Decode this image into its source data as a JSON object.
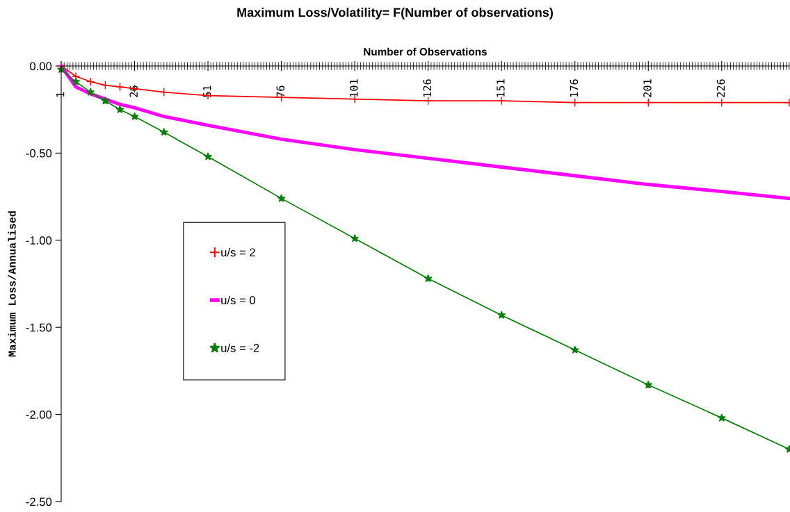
{
  "chart_data": {
    "type": "line",
    "title": "Maximum Loss/Volatility= F(Number of observations)",
    "xlabel": "Number of Observations",
    "ylabel": "Maximum Loss/Annualised",
    "x": [
      1,
      6,
      11,
      16,
      21,
      26,
      36,
      51,
      76,
      101,
      126,
      151,
      176,
      201,
      226,
      249
    ],
    "series": [
      {
        "name": "u/s = 2",
        "color": "#ff0000",
        "marker": "cross",
        "values": [
          0,
          -0.06,
          -0.09,
          -0.11,
          -0.12,
          -0.13,
          -0.15,
          -0.17,
          -0.18,
          -0.19,
          -0.2,
          -0.2,
          -0.21,
          -0.21,
          -0.21,
          -0.21
        ]
      },
      {
        "name": "u/s = 0",
        "color": "#ff00ff",
        "marker": "none",
        "values": [
          0,
          -0.12,
          -0.16,
          -0.19,
          -0.22,
          -0.24,
          -0.29,
          -0.34,
          -0.42,
          -0.48,
          -0.53,
          -0.58,
          -0.63,
          -0.68,
          -0.72,
          -0.76
        ]
      },
      {
        "name": "u/s = -2",
        "color": "#008000",
        "marker": "star",
        "values": [
          -0.02,
          -0.09,
          -0.15,
          -0.2,
          -0.25,
          -0.29,
          -0.38,
          -0.52,
          -0.76,
          -0.99,
          -1.22,
          -1.43,
          -1.63,
          -1.83,
          -2.02,
          -2.2
        ]
      }
    ],
    "xlim": [
      1,
      249
    ],
    "xticks": [
      1,
      26,
      51,
      76,
      101,
      126,
      151,
      176,
      201,
      226
    ],
    "ylim": [
      -2.5,
      0
    ],
    "yticks": [
      {
        "value": 0,
        "label": "0.00"
      },
      {
        "value": -0.5,
        "label": "-0.50"
      },
      {
        "value": -1,
        "label": "-1.00"
      },
      {
        "value": -1.5,
        "label": "-1.50"
      },
      {
        "value": -2,
        "label": "-2.00"
      },
      {
        "value": -2.5,
        "label": "-2.50"
      }
    ],
    "grid": false,
    "legend": "left",
    "line_style": "solid"
  }
}
